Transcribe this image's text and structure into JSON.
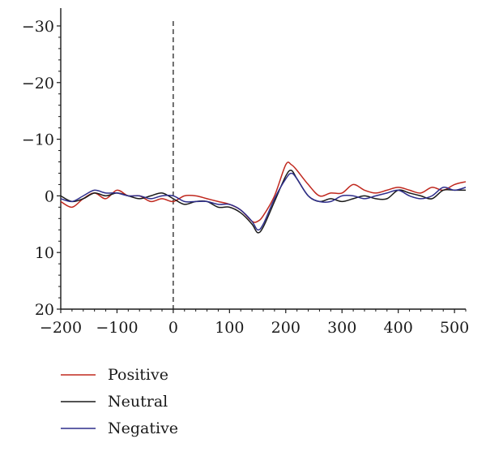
{
  "chart_data": {
    "type": "line",
    "title": "",
    "xlabel": "",
    "ylabel": "",
    "xlim": [
      -200,
      520
    ],
    "ylim": [
      20,
      -32
    ],
    "y_inverted": true,
    "grid": false,
    "legend_position": "bottom-left",
    "x_ticks": [
      -200,
      -100,
      0,
      100,
      200,
      300,
      400,
      500
    ],
    "x_tick_labels": [
      "−200",
      "−100",
      "0",
      "100",
      "200",
      "300",
      "400",
      "500"
    ],
    "y_ticks": [
      -30,
      -20,
      -10,
      0,
      10,
      20
    ],
    "y_tick_labels": [
      "−30",
      "−20",
      "−10",
      "0",
      "10",
      "20"
    ],
    "vertical_reference_x": 0,
    "x": [
      -200,
      -180,
      -160,
      -140,
      -120,
      -100,
      -80,
      -60,
      -40,
      -20,
      0,
      20,
      40,
      60,
      80,
      100,
      120,
      140,
      150,
      160,
      180,
      200,
      210,
      220,
      240,
      260,
      280,
      300,
      320,
      340,
      360,
      380,
      400,
      420,
      440,
      460,
      480,
      500,
      520
    ],
    "series": [
      {
        "name": "Positive",
        "color": "#c0281e",
        "values": [
          1,
          2,
          0.5,
          -0.5,
          0.5,
          -1,
          0,
          0,
          1,
          0.5,
          1,
          0,
          0,
          0.5,
          1,
          1.5,
          2.5,
          4.5,
          4.5,
          3.5,
          0,
          -5.5,
          -5.5,
          -4.5,
          -2,
          0,
          -0.5,
          -0.5,
          -2,
          -1,
          -0.5,
          -1,
          -1.5,
          -1,
          -0.5,
          -1.5,
          -1,
          -2,
          -2.5
        ]
      },
      {
        "name": "Neutral",
        "color": "#1a1a1a",
        "values": [
          0,
          1,
          0.5,
          -0.5,
          0,
          -0.5,
          0,
          0.5,
          0,
          -0.5,
          0.5,
          1.5,
          1,
          1,
          2,
          2,
          3,
          5,
          6.5,
          5.5,
          1,
          -3.5,
          -4.5,
          -3,
          0,
          1,
          0.5,
          1,
          0.5,
          0,
          0.5,
          0.5,
          -1,
          -0.5,
          0,
          0.5,
          -1,
          -1,
          -1
        ]
      },
      {
        "name": "Negative",
        "color": "#2e2e8c",
        "values": [
          0.5,
          1,
          0,
          -1,
          -0.5,
          -0.5,
          0,
          0,
          0.5,
          0,
          0,
          1,
          1,
          1,
          1.5,
          1.5,
          2.5,
          4.5,
          6,
          5,
          0.5,
          -3,
          -4,
          -3,
          0,
          1,
          1,
          0,
          0,
          0.5,
          0,
          -0.5,
          -1,
          0,
          0.5,
          0,
          -1.5,
          -1,
          -1.5
        ]
      }
    ]
  }
}
